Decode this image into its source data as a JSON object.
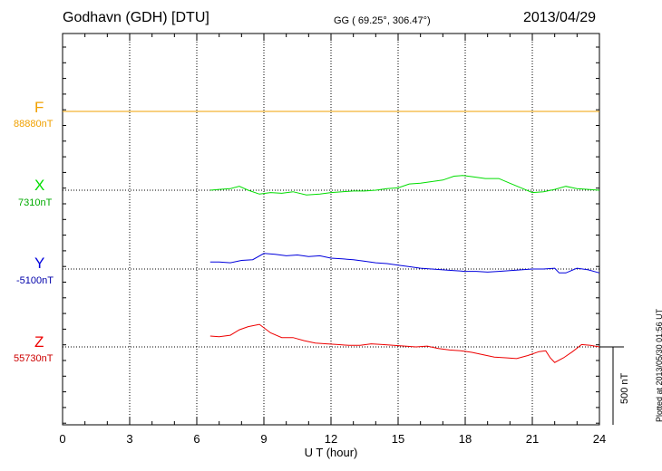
{
  "header": {
    "station": "Godhavn (GDH)  [DTU]",
    "coords": "GG ( 69.25°, 306.47°)",
    "date": "2013/04/29"
  },
  "plotted_note": "Plotted at 2013/05/30 01:56 UT",
  "scale_label": "500 nT",
  "channels": [
    {
      "name": "F",
      "baseline": "88880nT",
      "color": "#f0a000"
    },
    {
      "name": "X",
      "baseline": "7310nT",
      "color": "#00dd00"
    },
    {
      "name": "Y",
      "baseline": "-5100nT",
      "color": "#0000dd"
    },
    {
      "name": "Z",
      "baseline": "55730nT",
      "color": "#ee0000"
    }
  ],
  "chart_data": {
    "type": "line",
    "xlabel": "U T (hour)",
    "xlim": [
      0,
      24
    ],
    "xticks": [
      "0",
      "3",
      "6",
      "9",
      "12",
      "15",
      "18",
      "21",
      "24"
    ],
    "y_unit": "nT deviation from baseline",
    "scale_bar_nT": 500,
    "grid": true,
    "series": [
      {
        "name": "F",
        "color": "#f0a000",
        "x": [
          0,
          24
        ],
        "values": [
          0,
          0
        ]
      },
      {
        "name": "X",
        "color": "#00dd00",
        "x": [
          6.6,
          7,
          7.5,
          7.9,
          8.3,
          8.8,
          9.3,
          9.8,
          10.3,
          10.9,
          11.5,
          12,
          12.5,
          13,
          13.5,
          14,
          14.5,
          15,
          15.5,
          16,
          16.5,
          17,
          17.5,
          17.9,
          18.4,
          18.9,
          19.5,
          20,
          20.5,
          21,
          21.5,
          22,
          22.5,
          23,
          23.5,
          24
        ],
        "values": [
          0,
          5,
          10,
          25,
          0,
          -25,
          -15,
          -20,
          -10,
          -30,
          -25,
          -15,
          -10,
          -5,
          -5,
          0,
          10,
          15,
          40,
          45,
          55,
          65,
          90,
          95,
          85,
          75,
          75,
          45,
          15,
          -15,
          -10,
          5,
          25,
          10,
          5,
          0
        ]
      },
      {
        "name": "Y",
        "color": "#0000dd",
        "x": [
          6.6,
          7,
          7.5,
          8,
          8.5,
          9,
          9.5,
          10,
          10.5,
          11,
          11.5,
          12,
          12.5,
          13,
          13.5,
          14,
          14.5,
          15,
          15.5,
          16,
          16.5,
          17,
          17.5,
          18,
          18.5,
          19,
          19.5,
          20,
          20.5,
          21,
          21.5,
          22,
          22.2,
          22.5,
          23,
          23.5,
          24
        ],
        "values": [
          45,
          45,
          40,
          55,
          60,
          100,
          95,
          85,
          90,
          80,
          85,
          70,
          65,
          60,
          50,
          40,
          35,
          25,
          15,
          5,
          0,
          -5,
          -10,
          -15,
          -15,
          -20,
          -15,
          -10,
          -5,
          0,
          0,
          5,
          -25,
          -25,
          5,
          -5,
          -25
        ]
      },
      {
        "name": "Z",
        "color": "#ee0000",
        "x": [
          6.6,
          7,
          7.5,
          7.9,
          8.3,
          8.8,
          9.3,
          9.8,
          10.3,
          10.8,
          11.3,
          11.8,
          12.3,
          12.8,
          13.3,
          13.8,
          14.3,
          14.8,
          15.3,
          15.8,
          16.3,
          16.8,
          17.3,
          17.8,
          18.3,
          18.8,
          19.3,
          19.8,
          20.3,
          20.8,
          21.3,
          21.6,
          21.8,
          22,
          22.4,
          22.8,
          23.2,
          23.6,
          24
        ],
        "values": [
          70,
          65,
          75,
          110,
          130,
          145,
          90,
          60,
          60,
          40,
          25,
          20,
          15,
          10,
          10,
          20,
          15,
          10,
          5,
          0,
          5,
          -10,
          -20,
          -25,
          -35,
          -50,
          -65,
          -70,
          -75,
          -55,
          -30,
          -25,
          -70,
          -100,
          -70,
          -30,
          15,
          10,
          0
        ]
      }
    ]
  }
}
